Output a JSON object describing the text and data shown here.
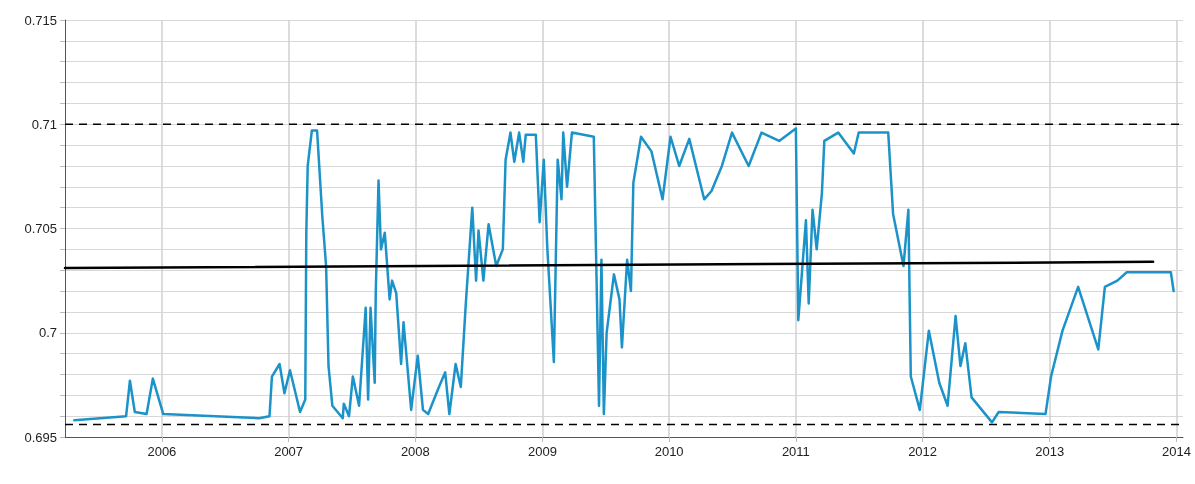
{
  "chart_data": {
    "type": "line",
    "grid": true,
    "line_style": "solid",
    "xlim": [
      "2005-03-28",
      "2014-01-20"
    ],
    "xticks": [
      "2006",
      "2007",
      "2008",
      "2009",
      "2010",
      "2011",
      "2012",
      "2013",
      "2014"
    ],
    "ylim": [
      0.695,
      0.715
    ],
    "yticks": [
      0.695,
      {
        "value": 0.696,
        "label": null
      },
      {
        "value": 0.697,
        "label": null
      },
      {
        "value": 0.698,
        "label": null
      },
      {
        "value": 0.699,
        "label": null
      },
      {
        "value": 0.7,
        "label": "0.7"
      },
      {
        "value": 0.701,
        "label": null
      },
      {
        "value": 0.702,
        "label": null
      },
      {
        "value": 0.703,
        "label": null
      },
      {
        "value": 0.704,
        "label": null
      },
      0.705,
      {
        "value": 0.706,
        "label": null
      },
      {
        "value": 0.707,
        "label": null
      },
      {
        "value": 0.708,
        "label": null
      },
      {
        "value": 0.709,
        "label": null
      },
      {
        "value": 0.71,
        "label": "0.71"
      },
      {
        "value": 0.711,
        "label": null
      },
      {
        "value": 0.712,
        "label": null
      },
      {
        "value": 0.713,
        "label": null
      },
      {
        "value": 0.714,
        "label": null
      },
      0.715
    ],
    "ref_lines": [
      {
        "axis": "y",
        "value": 0.71,
        "color": "#000000",
        "line_style": "dashed"
      },
      {
        "axis": "y",
        "value": 0.6956,
        "color": "#000000",
        "line_style": "dashed"
      }
    ],
    "series": [
      {
        "color": "#1b93c8",
        "x": [
          "2005-04-24",
          "2005-09-20",
          "2005-10-01",
          "2005-10-15",
          "2005-11-18",
          "2005-12-06",
          "2006-01-05",
          "2006-10-08",
          "2006-11-07",
          "2006-11-14",
          "2006-12-06",
          "2006-12-20",
          "2007-01-05",
          "2007-02-03",
          "2007-02-18",
          "2007-02-21",
          "2007-02-25",
          "2007-03-09",
          "2007-03-24",
          "2007-04-08",
          "2007-04-19",
          "2007-04-26",
          "2007-05-07",
          "2007-06-06",
          "2007-06-09",
          "2007-06-24",
          "2007-07-05",
          "2007-07-23",
          "2007-08-11",
          "2007-08-18",
          "2007-08-25",
          "2007-09-06",
          "2007-09-09",
          "2007-09-17",
          "2007-09-24",
          "2007-10-05",
          "2007-10-19",
          "2007-10-26",
          "2007-11-07",
          "2007-11-21",
          "2007-11-28",
          "2007-12-20",
          "2008-01-08",
          "2008-01-23",
          "2008-02-07",
          "2008-03-09",
          "2008-03-27",
          "2008-04-08",
          "2008-04-26",
          "2008-05-11",
          "2008-05-25",
          "2008-06-13",
          "2008-06-24",
          "2008-07-01",
          "2008-07-15",
          "2008-07-30",
          "2008-08-21",
          "2008-09-09",
          "2008-09-17",
          "2008-10-01",
          "2008-10-12",
          "2008-10-26",
          "2008-11-07",
          "2008-11-14",
          "2008-12-13",
          "2008-12-24",
          "2009-01-05",
          "2009-01-15",
          "2009-02-03",
          "2009-02-14",
          "2009-02-25",
          "2009-03-02",
          "2009-03-13",
          "2009-03-27",
          "2009-05-29",
          "2009-06-13",
          "2009-06-20",
          "2009-06-27",
          "2009-07-05",
          "2009-07-26",
          "2009-08-11",
          "2009-08-18",
          "2009-09-02",
          "2009-09-13",
          "2009-09-20",
          "2009-10-12",
          "2009-11-11",
          "2009-12-13",
          "2010-01-05",
          "2010-01-30",
          "2010-02-28",
          "2010-04-12",
          "2010-05-03",
          "2010-06-02",
          "2010-07-01",
          "2010-08-18",
          "2010-09-24",
          "2010-11-14",
          "2011-01-01",
          "2011-01-08",
          "2011-01-30",
          "2011-02-07",
          "2011-02-18",
          "2011-03-02",
          "2011-03-17",
          "2011-03-24",
          "2011-05-03",
          "2011-06-17",
          "2011-07-01",
          "2011-09-24",
          "2011-10-08",
          "2011-11-07",
          "2011-11-21",
          "2011-11-28",
          "2011-12-24",
          "2012-01-19",
          "2012-02-18",
          "2012-03-13",
          "2012-04-05",
          "2012-04-19",
          "2012-05-03",
          "2012-05-21",
          "2012-07-19",
          "2012-08-07",
          "2012-12-20",
          "2013-01-05",
          "2013-02-07",
          "2013-03-24",
          "2013-05-21",
          "2013-06-09",
          "2013-07-15",
          "2013-08-11",
          "2013-12-16",
          "2013-12-24"
        ],
        "values": [
          0.6958,
          0.696,
          0.6977,
          0.6962,
          0.6961,
          0.6978,
          0.6961,
          0.6959,
          0.696,
          0.6979,
          0.6985,
          0.6971,
          0.6982,
          0.6962,
          0.6968,
          0.7048,
          0.708,
          0.7097,
          0.7097,
          0.7056,
          0.7032,
          0.6984,
          0.6965,
          0.6959,
          0.6966,
          0.696,
          0.6979,
          0.6965,
          0.7012,
          0.6968,
          0.7012,
          0.6976,
          0.7019,
          0.7073,
          0.704,
          0.7048,
          0.7016,
          0.7025,
          0.7019,
          0.6985,
          0.7005,
          0.6963,
          0.6989,
          0.6963,
          0.6961,
          0.6974,
          0.6981,
          0.6961,
          0.6985,
          0.6974,
          0.7013,
          0.706,
          0.7025,
          0.7049,
          0.7025,
          0.7052,
          0.7032,
          0.704,
          0.7083,
          0.7096,
          0.7082,
          0.7096,
          0.7082,
          0.7095,
          0.7095,
          0.7053,
          0.7083,
          0.7041,
          0.6986,
          0.7083,
          0.7064,
          0.7096,
          0.707,
          0.7096,
          0.7094,
          0.6965,
          0.7035,
          0.6961,
          0.7,
          0.7028,
          0.7016,
          0.6993,
          0.7035,
          0.702,
          0.7072,
          0.7094,
          0.7087,
          0.7064,
          0.7094,
          0.708,
          0.7093,
          0.7064,
          0.7068,
          0.708,
          0.7096,
          0.708,
          0.7096,
          0.7092,
          0.7098,
          0.7006,
          0.7054,
          0.7014,
          0.7059,
          0.704,
          0.7067,
          0.7092,
          0.7096,
          0.7086,
          0.7096,
          0.7096,
          0.7057,
          0.7032,
          0.7059,
          0.6979,
          0.6963,
          0.7001,
          0.6976,
          0.6965,
          0.7008,
          0.6984,
          0.6995,
          0.6969,
          0.6957,
          0.6962,
          0.6961,
          0.6979,
          0.7001,
          0.7022,
          0.6992,
          0.7022,
          0.7025,
          0.7029,
          0.7029,
          0.702
        ]
      },
      {
        "color": "#000000",
        "x": [
          "2005-03-28",
          "2013-10-26"
        ],
        "values": [
          0.7031,
          0.7034
        ]
      }
    ]
  }
}
